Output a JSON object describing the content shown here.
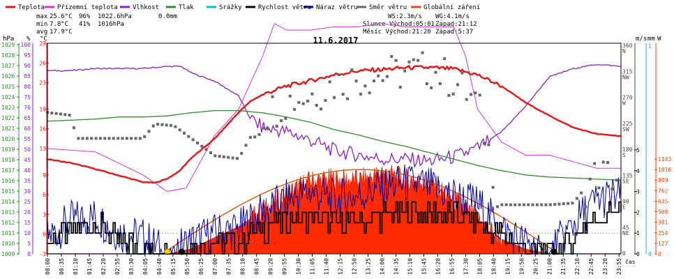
{
  "chart_data": {
    "type": "line",
    "title": "11.6.2017",
    "date": "11.6.2017",
    "xlabel": "čas",
    "legend": [
      {
        "label": "Teplota",
        "color": "#e11b1b"
      },
      {
        "label": "Přízemní teplota",
        "color": "#d633d6"
      },
      {
        "label": "Vlhkost",
        "color": "#8a1fbf"
      },
      {
        "label": "Tlak",
        "color": "#2e8b2e"
      },
      {
        "label": "Srážky",
        "color": "#17b3d6"
      },
      {
        "label": "Rychlost větru",
        "color": "#000000"
      },
      {
        "label": "Náraz větru",
        "color": "#00008b"
      },
      {
        "label": "Směr větru",
        "color": "#666666"
      },
      {
        "label": "Globální záření",
        "color": "#ff4500"
      }
    ],
    "stats": {
      "max_label": "max",
      "max_temp": "25.6°C",
      "max_hum": "96%",
      "max_press": "1022.6hPa",
      "precip_total": "0.0mm",
      "min_label": "min",
      "min_temp": "7.8°C",
      "min_hum": "41%",
      "min_press": "1016hPa",
      "avg_label": "avg",
      "avg_temp": "17.9°C",
      "ws": "WS:2.3m/s",
      "wg": "WG:4.1m/s",
      "sun": "Slunce Východ:05:01",
      "sun_set": "Západ:21:12",
      "moon": "Měsíc  Východ:21:20",
      "moon_set": "Západ:5:37"
    },
    "axes": {
      "hpa_title": "hPa",
      "pct_title": "%",
      "c_title": "°C",
      "ms_title": "m/s",
      "mm_title": "mm",
      "w_title": "W",
      "hpa_ticks": [
        "1029",
        "1028",
        "1027",
        "1026",
        "1025",
        "1024",
        "1023",
        "1022",
        "1021",
        "1020",
        "1019",
        "1018",
        "1017",
        "1016",
        "1015",
        "1014",
        "1013",
        "1012",
        "1011",
        "1010",
        "1009"
      ],
      "pct_ticks": [
        "100",
        "95",
        "90",
        "85",
        "80",
        "75",
        "70",
        "65",
        "60",
        "55",
        "50",
        "45",
        "40",
        "35",
        "30",
        "25",
        "20",
        "15",
        "10",
        "5",
        "0"
      ],
      "c_ticks": [
        "29",
        "26",
        "23",
        "19",
        "16",
        "13",
        "9",
        "6",
        "3",
        "0",
        "-3"
      ],
      "deg_ticks": [
        {
          "deg": "360",
          "dir": "N"
        },
        {
          "deg": "315",
          "dir": "NW"
        },
        {
          "deg": "270",
          "dir": "W"
        },
        {
          "deg": "225",
          "dir": "SW"
        },
        {
          "deg": "180",
          "dir": "S"
        },
        {
          "deg": "135",
          "dir": "SE"
        },
        {
          "deg": "90",
          "dir": "E"
        },
        {
          "deg": "45",
          "dir": "NE"
        },
        {
          "deg": "0",
          "dir": ""
        }
      ],
      "ms_ticks": [
        "5",
        "4",
        "3",
        "2",
        "1",
        "0"
      ],
      "mm_ticks": [
        "1",
        "0"
      ],
      "w_ticks": [
        "1143",
        "1016",
        "889",
        "762",
        "635",
        "508",
        "381",
        "254",
        "127",
        "0"
      ],
      "time_ticks": [
        "00:00",
        "00:35",
        "01:10",
        "01:45",
        "02:20",
        "02:55",
        "03:30",
        "04:05",
        "04:40",
        "05:15",
        "05:50",
        "06:25",
        "07:00",
        "07:35",
        "08:10",
        "08:45",
        "09:20",
        "09:55",
        "10:30",
        "11:05",
        "11:40",
        "12:15",
        "12:50",
        "13:25",
        "14:00",
        "14:35",
        "15:10",
        "15:45",
        "16:20",
        "16:55",
        "17:30",
        "18:05",
        "18:40",
        "19:15",
        "19:50",
        "20:25",
        "21:00",
        "21:35",
        "22:10",
        "22:45",
        "23:20",
        "23:55"
      ]
    },
    "series": [
      {
        "name": "Teplota",
        "unit": "°C",
        "hours": [
          0,
          1,
          2,
          3,
          4,
          4.5,
          5,
          5.5,
          6,
          7,
          8,
          8.5,
          9,
          10,
          11,
          12,
          13,
          14,
          15,
          16,
          17,
          18,
          19,
          20,
          21,
          22,
          23,
          24
        ],
        "values": [
          11.4,
          10.8,
          9.9,
          8.9,
          7.9,
          7.8,
          8.4,
          9.5,
          11.5,
          14.5,
          18.5,
          20.2,
          21.2,
          22.5,
          23.3,
          24.2,
          24.8,
          25.0,
          25.3,
          25.3,
          25.1,
          24.2,
          22.5,
          20.0,
          18.0,
          16.2,
          15.2,
          14.9
        ]
      },
      {
        "name": "Vlhkost",
        "unit": "%",
        "hours": [
          0,
          1,
          2,
          3,
          4,
          5,
          5.6,
          6,
          7,
          8,
          8.5,
          9,
          10,
          11,
          12,
          13,
          14,
          15,
          16,
          17,
          18,
          18.5,
          19,
          20,
          21,
          22,
          23,
          24
        ],
        "values": [
          87,
          87,
          88,
          88,
          88,
          89,
          89,
          86,
          82,
          75,
          64,
          60,
          58,
          54,
          49,
          47,
          45,
          45,
          44,
          46,
          50,
          54,
          58,
          70,
          84,
          88,
          90,
          89
        ]
      },
      {
        "name": "Přízemní teplota",
        "unit": "%-scale",
        "hours": [
          0,
          2,
          4,
          5,
          5.8,
          7,
          8,
          9,
          9.5,
          10,
          11,
          12,
          13,
          14,
          15,
          16,
          17,
          17.5,
          18,
          19,
          20,
          21,
          22,
          23,
          24
        ],
        "values": [
          13,
          12.5,
          9,
          6.5,
          7,
          15,
          19,
          27,
          32,
          31,
          31,
          31.5,
          31.5,
          32,
          31.5,
          31.5,
          31.5,
          27,
          19,
          14,
          12,
          12,
          11,
          10,
          10
        ]
      },
      {
        "name": "Tlak",
        "unit": "hPa",
        "hours": [
          0,
          1,
          2,
          3,
          4,
          5,
          6,
          7,
          8,
          9,
          10,
          11,
          12,
          13,
          14,
          15,
          16,
          17,
          18,
          19,
          20,
          21,
          22,
          23,
          24
        ],
        "values": [
          1021.6,
          1021.7,
          1021.8,
          1022.0,
          1022.0,
          1022.1,
          1022.4,
          1022.6,
          1022.6,
          1022.4,
          1022.0,
          1021.5,
          1020.8,
          1020.3,
          1019.7,
          1019.2,
          1018.6,
          1018.0,
          1017.4,
          1016.9,
          1016.5,
          1016.3,
          1016.2,
          1016.1,
          1016.0
        ]
      },
      {
        "name": "Globální záření",
        "unit": "W/m2",
        "hours": [
          5,
          6,
          7,
          8,
          9,
          10,
          11,
          12,
          12.8,
          13.5,
          14,
          15,
          16,
          17,
          18,
          19,
          20,
          21
        ],
        "values": [
          0,
          60,
          200,
          330,
          520,
          720,
          880,
          900,
          880,
          920,
          980,
          900,
          860,
          650,
          420,
          180,
          60,
          0
        ]
      },
      {
        "name": "Rychlost větru",
        "unit": "m/s",
        "hours": [
          0,
          1,
          2,
          3,
          4,
          5,
          6,
          7,
          8,
          9,
          10,
          11,
          12,
          13,
          14,
          15,
          16,
          17,
          18,
          19,
          20,
          21,
          22,
          23,
          24
        ],
        "values": [
          0.5,
          1.2,
          1.4,
          0.6,
          0.4,
          0,
          0.3,
          0.6,
          0.6,
          1.2,
          1.6,
          1.8,
          1.4,
          1.6,
          1.8,
          2.0,
          2.0,
          1.8,
          1.6,
          0.8,
          0.3,
          0,
          0.8,
          1.8,
          2.2
        ]
      },
      {
        "name": "Náraz větru",
        "unit": "m/s",
        "hours": [
          0,
          1,
          2,
          3,
          4,
          5,
          6,
          7,
          8,
          9,
          10,
          11,
          12,
          13,
          14,
          15,
          16,
          17,
          18,
          19,
          20,
          21,
          22,
          23,
          24
        ],
        "values": [
          0.8,
          1.6,
          1.8,
          1.0,
          0.8,
          0,
          0.6,
          1.0,
          1.2,
          2.0,
          2.6,
          3.0,
          2.6,
          2.8,
          3.2,
          3.4,
          3.2,
          2.8,
          2.4,
          1.2,
          0.5,
          0,
          1.4,
          2.6,
          2.8
        ]
      },
      {
        "name": "Směr větru",
        "unit": "°",
        "hours": [
          0,
          1,
          1.2,
          3,
          4,
          4.5,
          5.3,
          7,
          8,
          9,
          10,
          11,
          12,
          13,
          14,
          15,
          16,
          17,
          18,
          19,
          20,
          21,
          22,
          23,
          24
        ],
        "values": [
          245,
          240,
          200,
          200,
          200,
          225,
          222,
          170,
          165,
          240,
          265,
          275,
          295,
          305,
          310,
          315,
          320,
          300,
          260,
          85,
          85,
          85,
          88,
          140,
          130
        ]
      },
      {
        "name": "Srážky",
        "unit": "mm",
        "hours": [
          0,
          24
        ],
        "values": [
          0,
          0
        ]
      }
    ]
  }
}
